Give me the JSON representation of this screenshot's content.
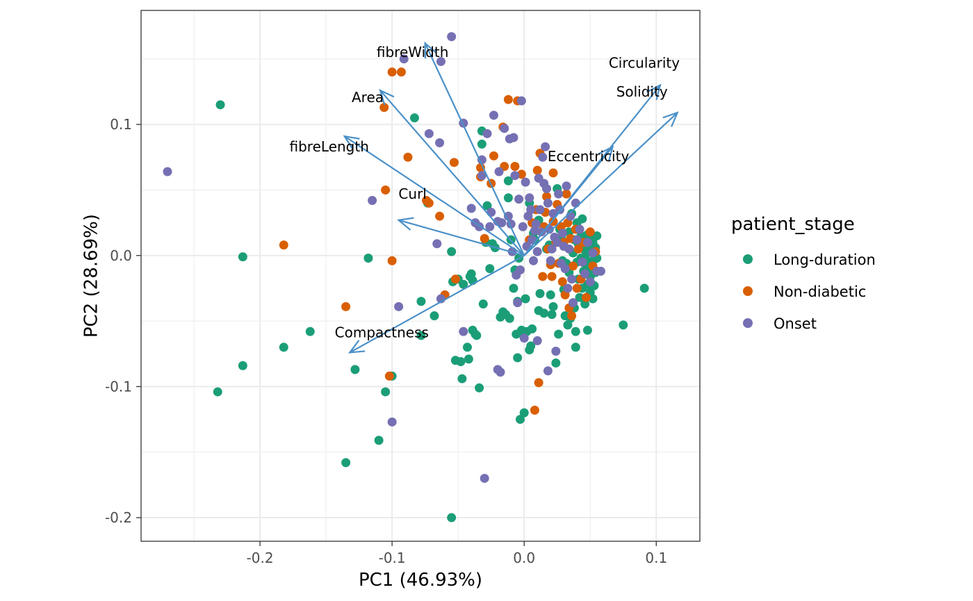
{
  "chart_data": {
    "type": "scatter",
    "title": "",
    "xlabel": "PC1 (46.93%)",
    "ylabel": "PC2 (28.69%)",
    "xlim": [
      -0.29,
      0.133
    ],
    "ylim": [
      -0.218,
      0.187
    ],
    "x_ticks": [
      -0.2,
      -0.1,
      0.0,
      0.1
    ],
    "x_tick_labels": [
      "-0.2",
      "-0.1",
      "0.0",
      "0.1"
    ],
    "y_ticks": [
      -0.2,
      -0.1,
      0.0,
      0.1
    ],
    "y_tick_labels": [
      "-0.2",
      "-0.1",
      "0.0",
      "0.1"
    ],
    "grid": true,
    "legend": {
      "title": "patient_stage",
      "position": "right",
      "entries": [
        "Long-duration",
        "Non-diabetic",
        "Onset"
      ]
    },
    "colors": {
      "Long-duration": "#1b9e77",
      "Non-diabetic": "#d95f02",
      "Onset": "#7570b3",
      "loading_arrow": "#4a90c8"
    },
    "series": [
      {
        "name": "Long-duration",
        "points": [
          [
            -0.23,
            0.115
          ],
          [
            -0.213,
            -0.001
          ],
          [
            -0.232,
            -0.104
          ],
          [
            -0.213,
            -0.084
          ],
          [
            -0.182,
            -0.07
          ],
          [
            -0.162,
            -0.058
          ],
          [
            -0.135,
            -0.158
          ],
          [
            -0.128,
            -0.087
          ],
          [
            -0.118,
            -0.002
          ],
          [
            -0.11,
            -0.141
          ],
          [
            -0.105,
            -0.104
          ],
          [
            -0.1,
            -0.092
          ],
          [
            -0.083,
            0.105
          ],
          [
            -0.078,
            -0.035
          ],
          [
            -0.078,
            -0.061
          ],
          [
            -0.073,
            0.04
          ],
          [
            -0.068,
            -0.046
          ],
          [
            -0.055,
            0.003
          ],
          [
            -0.055,
            -0.2
          ],
          [
            -0.054,
            -0.02
          ],
          [
            -0.052,
            -0.08
          ],
          [
            -0.05,
            -0.018
          ],
          [
            -0.048,
            -0.081
          ],
          [
            -0.047,
            -0.094
          ],
          [
            -0.046,
            -0.022
          ],
          [
            -0.043,
            -0.07
          ],
          [
            -0.042,
            -0.079
          ],
          [
            -0.041,
            -0.016
          ],
          [
            -0.04,
            -0.014
          ],
          [
            -0.039,
            -0.019
          ],
          [
            -0.039,
            -0.057
          ],
          [
            -0.037,
            -0.06
          ],
          [
            -0.036,
            -0.061
          ],
          [
            -0.034,
            -0.101
          ],
          [
            -0.032,
            0.085
          ],
          [
            -0.032,
            0.095
          ],
          [
            -0.031,
            -0.037
          ],
          [
            -0.029,
            0.01
          ],
          [
            -0.028,
            0.038
          ],
          [
            -0.026,
            -0.01
          ],
          [
            -0.024,
            0.009
          ],
          [
            -0.022,
            0.006
          ],
          [
            -0.018,
            -0.047
          ],
          [
            -0.016,
            -0.043
          ],
          [
            -0.014,
            -0.045
          ],
          [
            -0.012,
            0.057
          ],
          [
            -0.012,
            0.044
          ],
          [
            -0.011,
            -0.048
          ],
          [
            -0.01,
            0.012
          ],
          [
            -0.008,
            -0.025
          ],
          [
            -0.007,
            -0.011
          ],
          [
            -0.006,
            -0.06
          ],
          [
            -0.005,
            -0.078
          ],
          [
            -0.005,
            -0.035
          ],
          [
            -0.004,
            -0.002
          ],
          [
            -0.003,
            -0.125
          ],
          [
            -0.002,
            -0.057
          ],
          [
            -0.001,
            -0.06
          ],
          [
            0.0,
            -0.12
          ],
          [
            0.001,
            -0.033
          ],
          [
            0.002,
            -0.058
          ],
          [
            0.004,
            -0.072
          ],
          [
            0.004,
            0.04
          ],
          [
            0.005,
            -0.069
          ],
          [
            0.006,
            -0.056
          ],
          [
            0.007,
            0.017
          ],
          [
            0.008,
            0.012
          ],
          [
            0.009,
            0.025
          ],
          [
            0.011,
            0.027
          ],
          [
            0.011,
            -0.042
          ],
          [
            0.012,
            -0.029
          ],
          [
            0.015,
            -0.044
          ],
          [
            0.017,
            0.005
          ],
          [
            0.019,
            0.008
          ],
          [
            0.02,
            -0.03
          ],
          [
            0.021,
            -0.045
          ],
          [
            0.022,
            -0.039
          ],
          [
            0.024,
            -0.082
          ],
          [
            0.025,
            0.051
          ],
          [
            0.026,
            -0.06
          ],
          [
            0.027,
            0.02
          ],
          [
            0.028,
            0.014
          ],
          [
            0.029,
            -0.004
          ],
          [
            0.03,
            -0.026
          ],
          [
            0.031,
            -0.046
          ],
          [
            0.032,
            -0.006
          ],
          [
            0.033,
            -0.053
          ],
          [
            0.034,
            0.018
          ],
          [
            0.034,
            -0.013
          ],
          [
            0.035,
            -0.048
          ],
          [
            0.036,
            0.032
          ],
          [
            0.037,
            0.002
          ],
          [
            0.038,
            0.012
          ],
          [
            0.038,
            -0.04
          ],
          [
            0.039,
            -0.07
          ],
          [
            0.039,
            -0.058
          ],
          [
            0.04,
            0.025
          ],
          [
            0.04,
            -0.005
          ],
          [
            0.041,
            0.009
          ],
          [
            0.041,
            -0.018
          ],
          [
            0.042,
            -0.032
          ],
          [
            0.043,
            0.015
          ],
          [
            0.043,
            -0.002
          ],
          [
            0.044,
            -0.025
          ],
          [
            0.044,
            0.028
          ],
          [
            0.045,
            0.005
          ],
          [
            0.045,
            -0.012
          ],
          [
            0.046,
            -0.037
          ],
          [
            0.046,
            0.012
          ],
          [
            0.047,
            -0.008
          ],
          [
            0.047,
            0.001
          ],
          [
            0.048,
            -0.022
          ],
          [
            0.048,
            -0.057
          ],
          [
            0.048,
            0.016
          ],
          [
            0.049,
            -0.005
          ],
          [
            0.049,
            0.008
          ],
          [
            0.05,
            -0.016
          ],
          [
            0.05,
            -0.028
          ],
          [
            0.05,
            0.014
          ],
          [
            0.051,
            -0.01
          ],
          [
            0.051,
            0.003
          ],
          [
            0.052,
            -0.033
          ],
          [
            0.052,
            0.01
          ],
          [
            0.053,
            -0.003
          ],
          [
            0.053,
            -0.023
          ],
          [
            0.054,
            0.006
          ],
          [
            0.054,
            -0.013
          ],
          [
            0.055,
            0.015
          ],
          [
            0.055,
            -0.002
          ],
          [
            0.075,
            -0.053
          ],
          [
            0.091,
            -0.025
          ]
        ]
      },
      {
        "name": "Non-diabetic",
        "points": [
          [
            -0.182,
            0.008
          ],
          [
            -0.135,
            -0.039
          ],
          [
            -0.105,
            0.05
          ],
          [
            -0.106,
            0.113
          ],
          [
            -0.1,
            -0.004
          ],
          [
            -0.1,
            0.14
          ],
          [
            -0.093,
            0.14
          ],
          [
            -0.102,
            -0.092
          ],
          [
            -0.088,
            0.075
          ],
          [
            -0.074,
            0.042
          ],
          [
            -0.072,
            0.04
          ],
          [
            -0.064,
            0.03
          ],
          [
            -0.06,
            -0.03
          ],
          [
            -0.053,
            0.071
          ],
          [
            -0.052,
            -0.018
          ],
          [
            -0.033,
            0.067
          ],
          [
            -0.033,
            0.06
          ],
          [
            -0.03,
            0.013
          ],
          [
            -0.025,
            0.055
          ],
          [
            -0.023,
            0.076
          ],
          [
            -0.016,
            0.098
          ],
          [
            -0.015,
            0.068
          ],
          [
            -0.012,
            0.119
          ],
          [
            -0.007,
            0.068
          ],
          [
            -0.005,
            0.118
          ],
          [
            -0.002,
            0.062
          ],
          [
            0.004,
            0.012
          ],
          [
            0.006,
            0.025
          ],
          [
            0.008,
            -0.118
          ],
          [
            0.009,
            0.035
          ],
          [
            0.01,
            0.065
          ],
          [
            0.011,
            -0.097
          ],
          [
            0.012,
            0.078
          ],
          [
            0.014,
            -0.016
          ],
          [
            0.015,
            0.022
          ],
          [
            0.016,
            0.033
          ],
          [
            0.017,
            0.045
          ],
          [
            0.018,
            0.005
          ],
          [
            0.02,
            -0.007
          ],
          [
            0.021,
            -0.016
          ],
          [
            0.022,
            0.063
          ],
          [
            0.022,
            0.026
          ],
          [
            0.024,
            0.01
          ],
          [
            0.025,
            0.039
          ],
          [
            0.026,
            -0.006
          ],
          [
            0.028,
            0.022
          ],
          [
            0.029,
            -0.02
          ],
          [
            0.03,
            0.01
          ],
          [
            0.031,
            -0.03
          ],
          [
            0.032,
            0.047
          ],
          [
            0.033,
            0.025
          ],
          [
            0.034,
            -0.04
          ],
          [
            0.035,
            0.013
          ],
          [
            0.036,
            -0.046
          ],
          [
            0.037,
            -0.008
          ],
          [
            0.039,
            0.02
          ],
          [
            0.04,
            -0.025
          ],
          [
            0.041,
            0.005
          ],
          [
            0.043,
            -0.018
          ],
          [
            0.045,
            0.01
          ],
          [
            0.047,
            -0.032
          ],
          [
            0.05,
            0.018
          ],
          [
            0.052,
            -0.008
          ],
          [
            0.054,
            0.003
          ]
        ]
      },
      {
        "name": "Onset",
        "points": [
          [
            -0.27,
            0.064
          ],
          [
            -0.115,
            0.042
          ],
          [
            -0.095,
            -0.039
          ],
          [
            -0.1,
            -0.127
          ],
          [
            -0.091,
            0.15
          ],
          [
            -0.072,
            0.093
          ],
          [
            -0.066,
            0.009
          ],
          [
            -0.064,
            0.086
          ],
          [
            -0.063,
            -0.033
          ],
          [
            -0.063,
            0.148
          ],
          [
            -0.055,
            0.167
          ],
          [
            -0.046,
            0.101
          ],
          [
            -0.046,
            -0.058
          ],
          [
            -0.04,
            0.036
          ],
          [
            -0.037,
            0.025
          ],
          [
            -0.034,
            0.022
          ],
          [
            -0.032,
            0.073
          ],
          [
            -0.032,
            0.061
          ],
          [
            -0.03,
            -0.17
          ],
          [
            -0.028,
            0.093
          ],
          [
            -0.026,
            0.022
          ],
          [
            -0.025,
            0.033
          ],
          [
            -0.023,
            0.107
          ],
          [
            -0.02,
            0.026
          ],
          [
            -0.02,
            -0.087
          ],
          [
            -0.019,
            0.064
          ],
          [
            -0.018,
            -0.089
          ],
          [
            -0.017,
            0.025
          ],
          [
            -0.015,
            0.097
          ],
          [
            -0.012,
            0.03
          ],
          [
            -0.011,
            0.089
          ],
          [
            -0.01,
            0.024
          ],
          [
            -0.009,
            0.003
          ],
          [
            -0.008,
            0.09
          ],
          [
            -0.007,
            0.061
          ],
          [
            -0.006,
            -0.015
          ],
          [
            -0.005,
            -0.036
          ],
          [
            -0.004,
            0.043
          ],
          [
            -0.003,
            -0.011
          ],
          [
            -0.002,
            0.118
          ],
          [
            -0.001,
            0.022
          ],
          [
            0.0,
            -0.063
          ],
          [
            0.001,
            0.056
          ],
          [
            0.002,
            0.007
          ],
          [
            0.003,
            0.03
          ],
          [
            0.004,
            0.044
          ],
          [
            0.005,
            0.035
          ],
          [
            0.006,
            0.012
          ],
          [
            0.007,
            -0.004
          ],
          [
            0.008,
            0.019
          ],
          [
            0.009,
            0.024
          ],
          [
            0.01,
            0.003
          ],
          [
            0.011,
            0.059
          ],
          [
            0.012,
            0.035
          ],
          [
            0.013,
            0.018
          ],
          [
            0.014,
            0.075
          ],
          [
            0.015,
            0.055
          ],
          [
            0.016,
            0.083
          ],
          [
            0.017,
            0.051
          ],
          [
            0.018,
            0.04
          ],
          [
            0.019,
            0.02
          ],
          [
            0.02,
            -0.004
          ],
          [
            0.021,
            0.005
          ],
          [
            0.022,
            0.032
          ],
          [
            0.023,
            0.014
          ],
          [
            0.024,
            -0.073
          ],
          [
            0.025,
            0.01
          ],
          [
            0.026,
            0.047
          ],
          [
            0.027,
            0.035
          ],
          [
            0.028,
            -0.006
          ],
          [
            0.029,
            0.017
          ],
          [
            0.03,
            0.007
          ],
          [
            0.031,
            -0.01
          ],
          [
            0.032,
            0.053
          ],
          [
            0.033,
            -0.025
          ],
          [
            0.034,
            0.005
          ],
          [
            0.035,
            0.03
          ],
          [
            0.036,
            -0.018
          ],
          [
            0.037,
            -0.036
          ],
          [
            0.039,
            0.04
          ],
          [
            0.04,
            0.012
          ],
          [
            0.042,
            0.02
          ],
          [
            0.044,
            -0.005
          ],
          [
            0.046,
            -0.014
          ],
          [
            0.048,
            0.01
          ],
          [
            0.05,
            -0.02
          ],
          [
            0.052,
            0.002
          ],
          [
            0.055,
            -0.012
          ],
          [
            0.058,
            -0.012
          ],
          [
            0.018,
            -0.088
          ],
          [
            0.01,
            -0.065
          ]
        ]
      }
    ],
    "loadings": [
      {
        "label": "fibreWidth",
        "x": -0.075,
        "y": 0.162
      },
      {
        "label": "Area",
        "x": -0.109,
        "y": 0.126
      },
      {
        "label": "fibreLength",
        "x": -0.136,
        "y": 0.091
      },
      {
        "label": "Curl",
        "x": -0.095,
        "y": 0.027
      },
      {
        "label": "Compactness",
        "x": -0.132,
        "y": -0.074
      },
      {
        "label": "Circularity",
        "x": 0.103,
        "y": 0.13
      },
      {
        "label": "Solidity",
        "x": 0.116,
        "y": 0.109
      },
      {
        "label": "Eccentricity",
        "x": 0.067,
        "y": 0.083
      }
    ]
  }
}
